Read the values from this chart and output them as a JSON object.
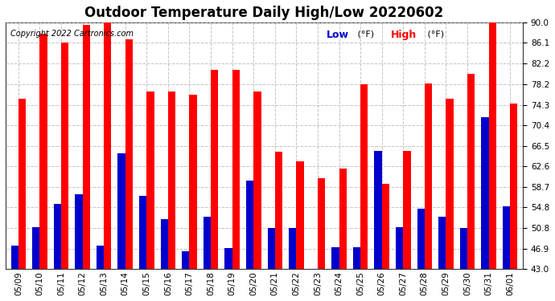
{
  "title": "Outdoor Temperature Daily High/Low 20220602",
  "copyright": "Copyright 2022 Cartronics.com",
  "dates": [
    "05/09",
    "05/10",
    "05/11",
    "05/12",
    "05/13",
    "05/14",
    "05/15",
    "05/16",
    "05/17",
    "05/18",
    "05/19",
    "05/20",
    "05/21",
    "05/22",
    "05/23",
    "05/24",
    "05/25",
    "05/26",
    "05/27",
    "05/28",
    "05/29",
    "05/30",
    "05/31",
    "06/01"
  ],
  "high": [
    75.5,
    87.8,
    86.1,
    89.6,
    91.0,
    86.8,
    76.8,
    76.8,
    76.2,
    81.0,
    80.9,
    76.8,
    65.3,
    63.5,
    60.4,
    62.2,
    78.2,
    59.2,
    65.5,
    78.3,
    75.5,
    80.2,
    90.5,
    74.5
  ],
  "low": [
    47.5,
    51.0,
    55.5,
    57.2,
    47.5,
    65.0,
    57.0,
    52.5,
    46.5,
    53.0,
    47.0,
    59.8,
    50.8,
    50.8,
    42.8,
    47.2,
    47.2,
    65.5,
    51.0,
    54.5,
    53.0,
    50.8,
    72.0,
    55.0
  ],
  "ylim_min": 43.0,
  "ylim_max": 90.0,
  "yticks": [
    43.0,
    46.9,
    50.8,
    54.8,
    58.7,
    62.6,
    66.5,
    70.4,
    74.3,
    78.2,
    82.2,
    86.1,
    90.0
  ],
  "bar_color_high": "#ff0000",
  "bar_color_low": "#0000cc",
  "bg_color": "#ffffff",
  "grid_color": "#aaaaaa",
  "title_fontsize": 12,
  "tick_fontsize": 7.5,
  "legend_fontsize": 9,
  "copyright_fontsize": 7,
  "bar_width": 0.35
}
